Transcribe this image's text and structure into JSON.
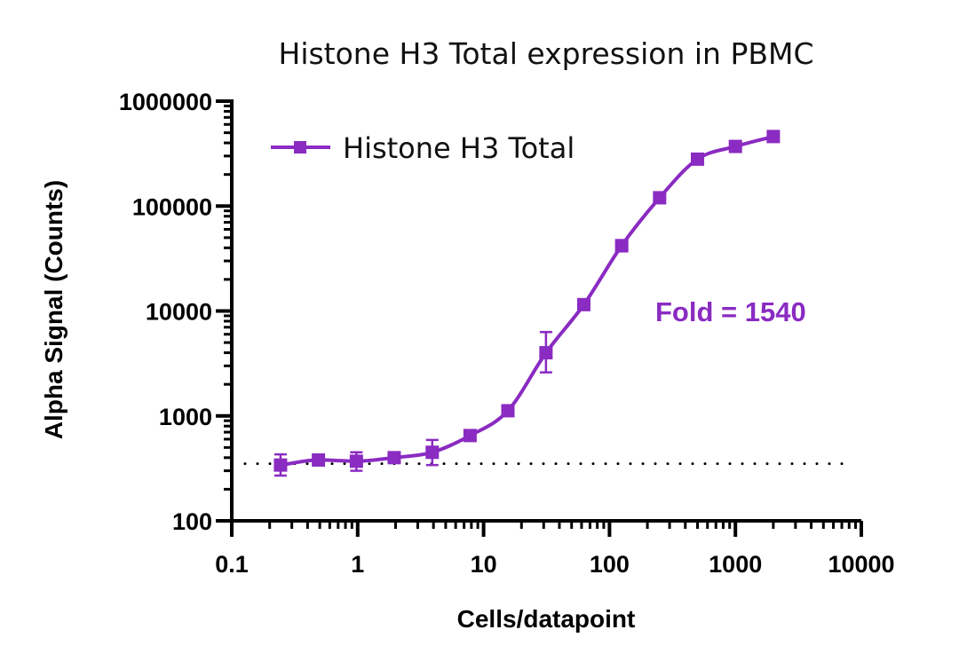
{
  "chart_data": {
    "type": "scatter",
    "title": "Histone H3 Total expression in PBMC",
    "xlabel": "Cells/datapoint",
    "ylabel": "Alpha Signal (Counts)",
    "x_scale": "log",
    "y_scale": "log",
    "xlim": [
      0.1,
      10000
    ],
    "ylim": [
      100,
      1000000
    ],
    "x_ticks": [
      0.1,
      1,
      10,
      100,
      1000,
      10000
    ],
    "x_tick_labels": [
      "0.1",
      "1",
      "10",
      "100",
      "1000",
      "10000"
    ],
    "y_ticks": [
      100,
      1000,
      10000,
      100000,
      1000000
    ],
    "y_tick_labels": [
      "100",
      "1000",
      "10000",
      "100000",
      "1000000"
    ],
    "legend_position": "top-left",
    "grid": false,
    "color": "#8a2bc2",
    "series": [
      {
        "name": "Histone H3 Total",
        "marker": "square",
        "fit_curve": "sigmoidal",
        "points": [
          {
            "x": 0.244,
            "y": 340,
            "err_low": 270,
            "err_high": 430
          },
          {
            "x": 0.488,
            "y": 380,
            "err_low": 360,
            "err_high": 400
          },
          {
            "x": 0.977,
            "y": 370,
            "err_low": 300,
            "err_high": 450
          },
          {
            "x": 1.95,
            "y": 400,
            "err_low": 380,
            "err_high": 420
          },
          {
            "x": 3.91,
            "y": 450,
            "err_low": 340,
            "err_high": 590
          },
          {
            "x": 7.81,
            "y": 650,
            "err_low": 610,
            "err_high": 690
          },
          {
            "x": 15.6,
            "y": 1120,
            "err_low": 1050,
            "err_high": 1200
          },
          {
            "x": 31.3,
            "y": 4000,
            "err_low": 2600,
            "err_high": 6300
          },
          {
            "x": 62.5,
            "y": 11500,
            "err_low": 10800,
            "err_high": 12300
          },
          {
            "x": 125,
            "y": 42000,
            "err_low": 37000,
            "err_high": 47000
          },
          {
            "x": 250,
            "y": 120000,
            "err_low": 112000,
            "err_high": 128000
          },
          {
            "x": 500,
            "y": 280000,
            "err_low": 265000,
            "err_high": 295000
          },
          {
            "x": 1000,
            "y": 370000,
            "err_low": 355000,
            "err_high": 385000
          },
          {
            "x": 2000,
            "y": 460000,
            "err_low": 410000,
            "err_high": 510000
          }
        ]
      }
    ],
    "reference_line": {
      "style": "dotted",
      "y": 350
    },
    "annotations": [
      {
        "text": "Fold = 1540",
        "x": 400,
        "y": 10000
      }
    ]
  }
}
